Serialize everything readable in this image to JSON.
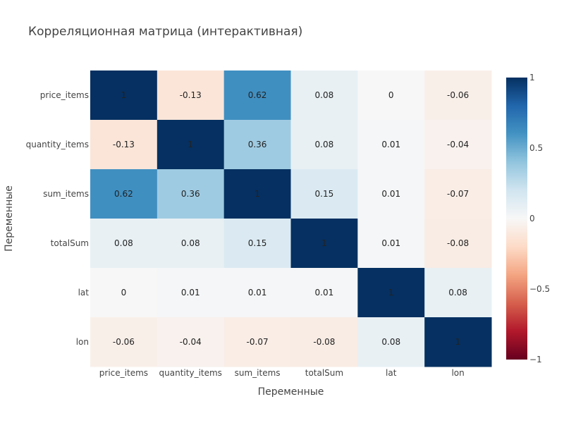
{
  "chart_data": {
    "type": "heatmap",
    "title": "Корреляционная матрица (интерактивная)",
    "xlabel": "Переменные",
    "ylabel": "Переменные",
    "x": [
      "price_items",
      "quantity_items",
      "sum_items",
      "totalSum",
      "lat",
      "lon"
    ],
    "y": [
      "price_items",
      "quantity_items",
      "sum_items",
      "totalSum",
      "lat",
      "lon"
    ],
    "z": [
      [
        1,
        -0.13,
        0.62,
        0.08,
        0,
        -0.06
      ],
      [
        -0.13,
        1,
        0.36,
        0.08,
        0.01,
        -0.04
      ],
      [
        0.62,
        0.36,
        1,
        0.15,
        0.01,
        -0.07
      ],
      [
        0.08,
        0.08,
        0.15,
        1,
        0.01,
        -0.08
      ],
      [
        0,
        0.01,
        0.01,
        0.01,
        1,
        0.08
      ],
      [
        -0.06,
        -0.04,
        -0.07,
        -0.08,
        0.08,
        1
      ]
    ],
    "zrange": [
      -1,
      1
    ],
    "colorscale": "RdBu",
    "colorbar": {
      "ticks": [
        1,
        0.5,
        0,
        -0.5,
        -1
      ],
      "tick_labels": [
        "1",
        "0.5",
        "0",
        "−0.5",
        "−1"
      ]
    }
  }
}
